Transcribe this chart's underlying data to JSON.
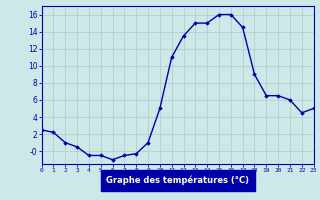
{
  "hours": [
    0,
    1,
    2,
    3,
    4,
    5,
    6,
    7,
    8,
    9,
    10,
    11,
    12,
    13,
    14,
    15,
    16,
    17,
    18,
    19,
    20,
    21,
    22,
    23
  ],
  "temps": [
    2.5,
    2.2,
    1.0,
    0.5,
    -0.5,
    -0.5,
    -1.0,
    -0.5,
    -0.3,
    1.0,
    5.0,
    11.0,
    13.5,
    15.0,
    15.0,
    16.0,
    16.0,
    14.5,
    9.0,
    6.5,
    6.5,
    6.0,
    4.5,
    5.0
  ],
  "line_color": "#0000aa",
  "marker": "D",
  "marker_size": 1.8,
  "line_width": 1.0,
  "bg_color": "#cce8e8",
  "plot_bg": "#cce8e8",
  "grid_color": "#aacccc",
  "xlabel": "Graphe des températures (°C)",
  "xlabel_bg": "#0000aa",
  "xlabel_color": "#ffffff",
  "xlim": [
    0,
    23
  ],
  "ylim": [
    -1.5,
    17
  ],
  "yticks": [
    0,
    2,
    4,
    6,
    8,
    10,
    12,
    14,
    16
  ],
  "ytick_labels": [
    "-0",
    "2",
    "4",
    "6",
    "8",
    "10",
    "12",
    "14",
    "16"
  ]
}
